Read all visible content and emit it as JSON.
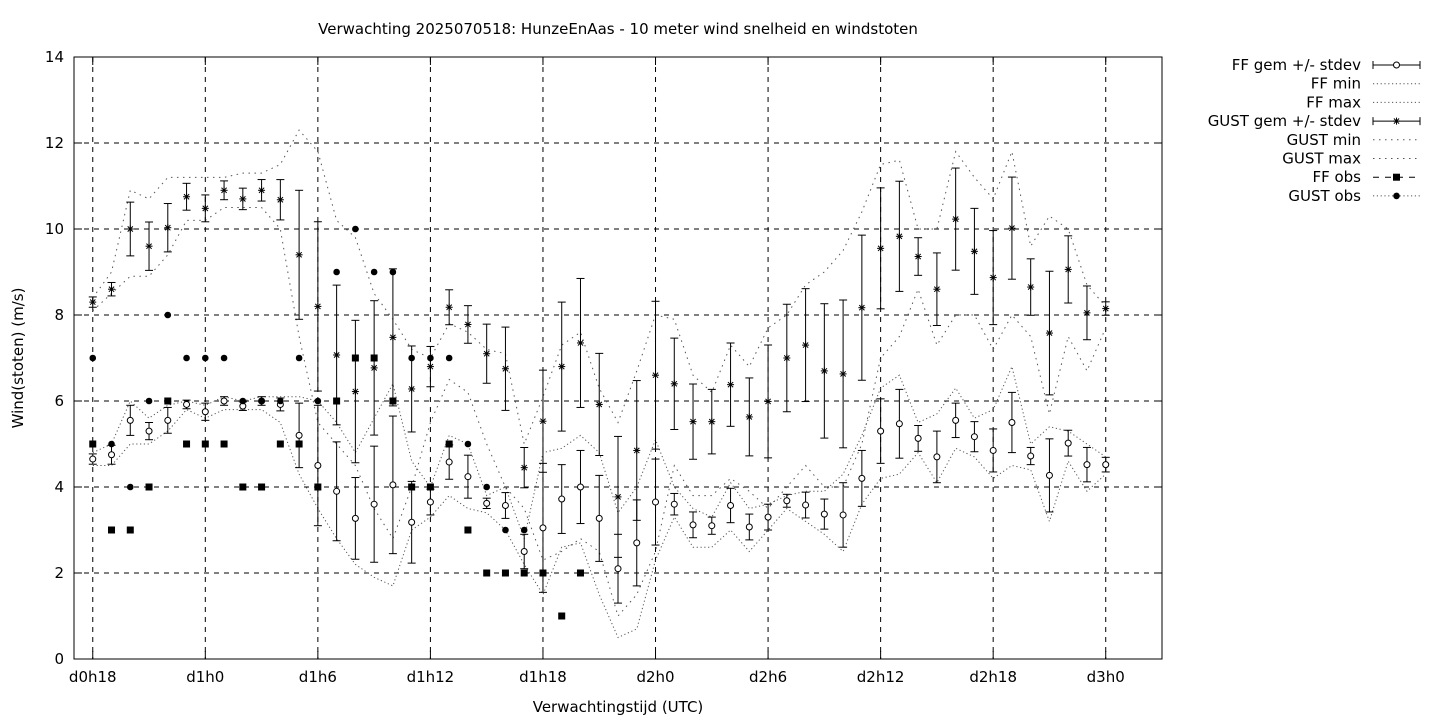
{
  "chart_data": {
    "type": "line",
    "title": "Verwachting 2025070518: HunzeEnAas - 10 meter wind snelheid en windstoten",
    "xlabel": "Verwachtingstijd (UTC)",
    "ylabel": "Wind(stoten) (m/s)",
    "ylim": [
      0,
      14
    ],
    "xlim": [
      17,
      75
    ],
    "x_unit": "hours since d0h0",
    "yticks": [
      0,
      2,
      4,
      6,
      8,
      10,
      12,
      14
    ],
    "xticks": [
      {
        "x": 18,
        "label": "d0h18"
      },
      {
        "x": 24,
        "label": "d1h0"
      },
      {
        "x": 30,
        "label": "d1h6"
      },
      {
        "x": 36,
        "label": "d1h12"
      },
      {
        "x": 42,
        "label": "d1h18"
      },
      {
        "x": 48,
        "label": "d2h0"
      },
      {
        "x": 54,
        "label": "d2h6"
      },
      {
        "x": 60,
        "label": "d2h12"
      },
      {
        "x": 66,
        "label": "d2h18"
      },
      {
        "x": 72,
        "label": "d3h0"
      }
    ],
    "grid": true,
    "legend_position": "outside-top-right",
    "x": [
      18,
      19,
      20,
      21,
      22,
      23,
      24,
      25,
      26,
      27,
      28,
      29,
      30,
      31,
      32,
      33,
      34,
      35,
      36,
      37,
      38,
      39,
      40,
      41,
      42,
      43,
      44,
      45,
      46,
      47,
      48,
      49,
      50,
      51,
      52,
      53,
      54,
      55,
      56,
      57,
      58,
      59,
      60,
      61,
      62,
      63,
      64,
      65,
      66,
      67,
      68,
      69,
      70,
      71,
      72
    ],
    "series": [
      {
        "name": "FF gem +/- stdev",
        "style": "errorbars-open-circle",
        "mean": [
          4.65,
          4.75,
          5.55,
          5.3,
          5.55,
          5.92,
          5.75,
          6.0,
          5.88,
          6.0,
          5.92,
          5.2,
          4.5,
          3.9,
          3.27,
          3.6,
          4.05,
          3.18,
          3.65,
          4.58,
          4.24,
          3.62,
          3.57,
          2.5,
          3.05,
          3.72,
          4.0,
          3.27,
          2.1,
          2.7,
          3.65,
          3.6,
          3.12,
          3.1,
          3.57,
          3.07,
          3.3,
          3.68,
          3.58,
          3.37,
          3.35,
          4.2,
          5.3,
          5.47,
          5.13,
          4.7,
          5.55,
          5.17,
          4.85,
          5.5,
          4.72,
          4.27,
          5.02,
          4.52,
          4.52
        ],
        "stdev": [
          0.12,
          0.22,
          0.35,
          0.2,
          0.3,
          0.1,
          0.2,
          0.1,
          0.1,
          0.1,
          0.15,
          0.75,
          1.4,
          1.15,
          0.95,
          1.35,
          1.6,
          0.95,
          0.3,
          0.4,
          0.5,
          0.12,
          0.3,
          0.4,
          1.5,
          0.8,
          0.85,
          1.0,
          0.8,
          1.0,
          1.0,
          0.25,
          0.3,
          0.2,
          0.4,
          0.3,
          0.3,
          0.15,
          0.3,
          0.35,
          0.75,
          0.65,
          0.75,
          0.8,
          0.3,
          0.6,
          0.4,
          0.35,
          0.5,
          0.7,
          0.2,
          0.85,
          0.3,
          0.4,
          0.17
        ]
      },
      {
        "name": "FF min",
        "style": "dotted",
        "values": [
          4.5,
          4.5,
          5.0,
          5.0,
          5.3,
          5.8,
          5.6,
          5.8,
          5.8,
          5.8,
          5.5,
          4.3,
          3.5,
          2.8,
          2.2,
          1.9,
          1.7,
          3.0,
          3.3,
          3.8,
          3.5,
          3.4,
          3.0,
          2.2,
          1.5,
          2.6,
          2.7,
          1.5,
          0.5,
          0.7,
          2.3,
          3.3,
          2.6,
          2.6,
          3.0,
          2.5,
          3.0,
          3.5,
          3.2,
          2.9,
          2.5,
          3.6,
          4.2,
          4.3,
          4.8,
          4.1,
          4.9,
          4.7,
          4.2,
          4.5,
          4.4,
          3.2,
          4.6,
          3.9,
          4.3
        ]
      },
      {
        "name": "FF max",
        "style": "dotted",
        "values": [
          4.8,
          5.0,
          6.0,
          5.6,
          5.9,
          6.0,
          5.9,
          6.1,
          6.0,
          6.1,
          6.1,
          6.1,
          6.0,
          5.5,
          4.8,
          5.6,
          6.4,
          4.6,
          4.0,
          5.2,
          5.0,
          3.8,
          4.0,
          2.8,
          4.8,
          4.9,
          5.2,
          4.8,
          3.4,
          4.0,
          5.1,
          4.0,
          3.5,
          3.3,
          4.1,
          3.5,
          3.6,
          3.8,
          3.9,
          3.9,
          4.3,
          5.2,
          6.3,
          6.6,
          5.5,
          5.7,
          6.3,
          5.6,
          5.8,
          6.8,
          5.0,
          5.4,
          5.3,
          5.0,
          4.7
        ]
      },
      {
        "name": "GUST gem +/- stdev",
        "style": "errorbars-star",
        "mean": [
          8.3,
          8.6,
          10.0,
          9.6,
          10.03,
          10.75,
          10.48,
          10.9,
          10.7,
          10.9,
          10.68,
          9.4,
          8.2,
          7.07,
          6.22,
          6.77,
          7.48,
          6.28,
          6.8,
          8.18,
          7.78,
          7.1,
          6.75,
          4.45,
          5.53,
          6.8,
          7.35,
          5.92,
          3.77,
          4.85,
          6.6,
          6.4,
          5.52,
          5.52,
          6.38,
          5.63,
          5.99,
          7.0,
          7.3,
          6.7,
          6.63,
          8.17,
          9.55,
          9.83,
          9.36,
          8.6,
          10.23,
          9.48,
          8.87,
          10.02,
          8.65,
          7.58,
          9.06,
          8.05,
          8.15
        ]
      },
      {
        "name": "GUST min",
        "style": "dotted",
        "values": [
          8.1,
          8.5,
          8.9,
          8.9,
          9.4,
          10.2,
          10.2,
          10.5,
          10.5,
          10.5,
          10.0,
          7.5,
          5.5,
          5.0,
          4.5,
          3.5,
          2.8,
          4.0,
          5.5,
          6.5,
          6.2,
          5.0,
          4.0,
          3.5,
          2.3,
          2.5,
          2.8,
          2.5,
          1.0,
          1.5,
          2.5,
          4.5,
          3.8,
          3.8,
          4.2,
          3.9,
          3.5,
          4.0,
          4.5,
          4.0,
          4.0,
          5.0,
          7.0,
          7.5,
          8.6,
          7.3,
          8.0,
          8.0,
          7.2,
          8.0,
          7.5,
          5.7,
          7.5,
          6.7,
          7.7
        ]
      },
      {
        "name": "GUST max",
        "style": "dotted",
        "values": [
          8.4,
          9.0,
          10.9,
          10.7,
          11.2,
          11.2,
          11.2,
          11.2,
          11.3,
          11.3,
          11.5,
          12.3,
          11.8,
          10.2,
          9.8,
          8.5,
          7.9,
          7.2,
          7.0,
          7.8,
          7.6,
          7.2,
          7.1,
          5.0,
          6.1,
          7.3,
          7.6,
          6.3,
          5.5,
          6.7,
          8.0,
          7.9,
          6.6,
          6.2,
          7.3,
          6.8,
          7.7,
          8.0,
          8.7,
          9.0,
          9.5,
          10.4,
          11.5,
          11.6,
          10.0,
          10.0,
          11.8,
          11.2,
          10.7,
          11.8,
          9.6,
          10.3,
          10.0,
          8.7,
          8.2
        ]
      },
      {
        "name": "FF obs",
        "style": "filled-square",
        "points": [
          [
            18,
            5
          ],
          [
            19,
            3
          ],
          [
            20,
            3
          ],
          [
            21,
            4
          ],
          [
            22,
            6
          ],
          [
            23,
            5
          ],
          [
            24,
            5
          ],
          [
            25,
            5
          ],
          [
            26,
            4
          ],
          [
            27,
            4
          ],
          [
            28,
            5
          ],
          [
            29,
            5
          ],
          [
            30,
            4
          ],
          [
            31,
            6
          ],
          [
            32,
            7
          ],
          [
            33,
            7
          ],
          [
            34,
            6
          ],
          [
            35,
            4
          ],
          [
            36,
            4
          ],
          [
            37,
            5
          ],
          [
            38,
            3
          ],
          [
            39,
            2
          ],
          [
            40,
            2
          ],
          [
            41,
            2
          ],
          [
            42,
            2
          ],
          [
            43,
            1
          ],
          [
            44,
            2
          ]
        ]
      },
      {
        "name": "GUST obs",
        "style": "filled-circle",
        "points": [
          [
            18,
            7
          ],
          [
            19,
            5
          ],
          [
            20,
            4
          ],
          [
            21,
            6
          ],
          [
            22,
            8
          ],
          [
            23,
            7
          ],
          [
            24,
            7
          ],
          [
            25,
            7
          ],
          [
            26,
            6
          ],
          [
            27,
            6
          ],
          [
            28,
            6
          ],
          [
            29,
            7
          ],
          [
            30,
            6
          ],
          [
            31,
            9
          ],
          [
            32,
            10
          ],
          [
            33,
            9
          ],
          [
            34,
            9
          ],
          [
            35,
            7
          ],
          [
            36,
            7
          ],
          [
            37,
            7
          ],
          [
            38,
            5
          ],
          [
            39,
            4
          ],
          [
            40,
            3
          ],
          [
            41,
            3
          ],
          [
            42,
            2
          ],
          [
            44,
            2
          ]
        ]
      }
    ]
  }
}
